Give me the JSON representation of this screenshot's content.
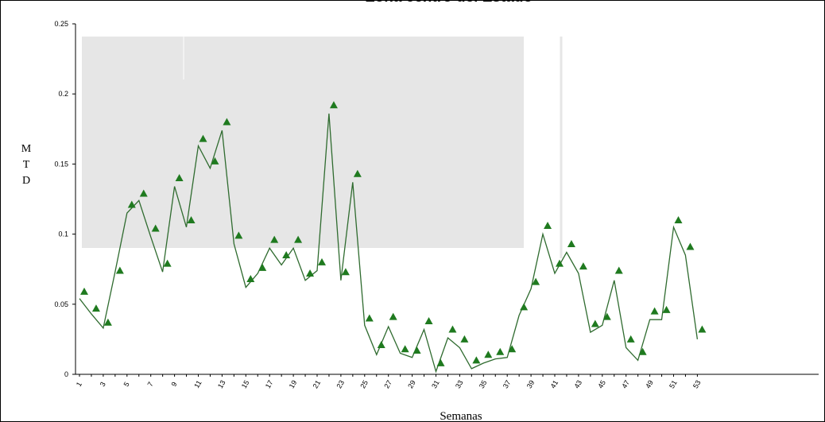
{
  "chart_data": {
    "type": "line",
    "title": "Zona centro del Estado",
    "xlabel": "Semanas",
    "ylabel_letters": [
      "M",
      "T",
      "D"
    ],
    "ylim": [
      0,
      0.25
    ],
    "y_ticks": [
      "0",
      "0.05",
      "0.1",
      "0.15",
      "0.2",
      "0.25"
    ],
    "x_tick_labels": [
      "1",
      "3",
      "5",
      "7",
      "9",
      "11",
      "13",
      "15",
      "17",
      "19",
      "21",
      "23",
      "25",
      "27",
      "29",
      "31",
      "33",
      "35",
      "37",
      "39",
      "41",
      "43",
      "45",
      "47",
      "49",
      "51",
      "53"
    ],
    "colors": {
      "line": "#2f6b2f",
      "marker": "#1f7a1f",
      "band": "#e6e6e6"
    },
    "series": [
      {
        "style": "line",
        "values": [
          0.054,
          0.043,
          0.033,
          0.073,
          0.115,
          0.124,
          0.098,
          0.073,
          0.134,
          0.105,
          0.163,
          0.147,
          0.174,
          0.093,
          0.062,
          0.072,
          0.09,
          0.078,
          0.09,
          0.067,
          0.074,
          0.186,
          0.067,
          0.137,
          0.035,
          0.014,
          0.034,
          0.015,
          0.012,
          0.032,
          0.002,
          0.026,
          0.019,
          0.004,
          0.008,
          0.011,
          0.012,
          0.042,
          0.061,
          0.1,
          0.072,
          0.087,
          0.072,
          0.03,
          0.035,
          0.067,
          0.019,
          0.01,
          0.039,
          0.039,
          0.105,
          0.085,
          0.025
        ]
      },
      {
        "style": "triangle-markers",
        "values": [
          0.059,
          0.047,
          0.037,
          0.074,
          0.121,
          0.129,
          0.104,
          0.079,
          0.14,
          0.11,
          0.168,
          0.152,
          0.18,
          0.099,
          0.068,
          0.076,
          0.096,
          0.085,
          0.096,
          0.072,
          0.08,
          0.192,
          0.073,
          0.143,
          0.04,
          0.021,
          0.041,
          0.018,
          0.017,
          0.038,
          0.008,
          0.032,
          0.025,
          0.01,
          0.014,
          0.016,
          0.018,
          0.048,
          0.066,
          0.106,
          0.079,
          0.093,
          0.077,
          0.036,
          0.041,
          0.074,
          0.025,
          0.016,
          0.045,
          0.046,
          0.11,
          0.091,
          0.032
        ]
      }
    ]
  }
}
